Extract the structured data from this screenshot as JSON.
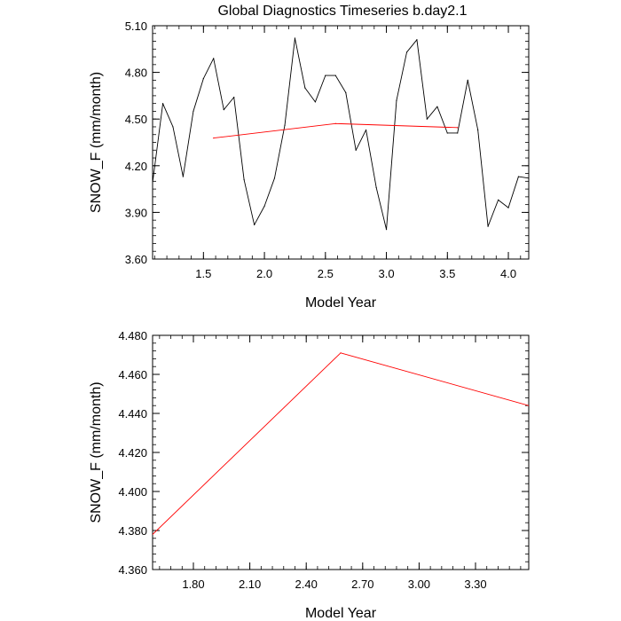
{
  "title": "Global Diagnostics Timeseries b.day2.1",
  "chart_data": [
    {
      "type": "line",
      "title": "Global Diagnostics Timeseries b.day2.1",
      "xlabel": "Model Year",
      "ylabel": "SNOW_F (mm/month)",
      "xlim": [
        1.083,
        4.167
      ],
      "ylim": [
        3.6,
        5.1
      ],
      "xticks": [
        "1.5",
        "2.0",
        "2.5",
        "3.0",
        "3.5",
        "4.0"
      ],
      "yticks": [
        "3.60",
        "3.90",
        "4.20",
        "4.50",
        "4.80",
        "5.10"
      ],
      "grid": false,
      "series": [
        {
          "color": "#000000",
          "x": [
            1.083,
            1.167,
            1.25,
            1.333,
            1.417,
            1.5,
            1.583,
            1.667,
            1.75,
            1.833,
            1.917,
            2.0,
            2.083,
            2.167,
            2.25,
            2.333,
            2.417,
            2.5,
            2.583,
            2.667,
            2.75,
            2.833,
            2.917,
            3.0,
            3.083,
            3.167,
            3.25,
            3.333,
            3.417,
            3.5,
            3.583,
            3.667,
            3.75,
            3.833,
            3.917,
            4.0,
            4.083,
            4.167
          ],
          "values": [
            4.09,
            4.6,
            4.45,
            4.13,
            4.55,
            4.76,
            4.89,
            4.56,
            4.64,
            4.11,
            3.82,
            3.94,
            4.12,
            4.46,
            5.02,
            4.7,
            4.61,
            4.78,
            4.78,
            4.67,
            4.3,
            4.43,
            4.06,
            3.79,
            4.62,
            4.93,
            5.01,
            4.5,
            4.58,
            4.41,
            4.41,
            4.75,
            4.43,
            3.81,
            3.98,
            3.93,
            4.13,
            4.12
          ]
        },
        {
          "color": "#ff0000",
          "x": [
            1.583,
            2.583,
            3.583
          ],
          "values": [
            4.378,
            4.471,
            4.445
          ]
        }
      ]
    },
    {
      "type": "line",
      "xlabel": "Model Year",
      "ylabel": "SNOW_F (mm/month)",
      "xlim": [
        1.583,
        3.583
      ],
      "ylim": [
        4.36,
        4.48
      ],
      "xticks": [
        "1.80",
        "2.10",
        "2.40",
        "2.70",
        "3.00",
        "3.30"
      ],
      "yticks": [
        "4.360",
        "4.380",
        "4.400",
        "4.420",
        "4.440",
        "4.460",
        "4.480"
      ],
      "grid": false,
      "series": [
        {
          "color": "#ff0000",
          "x": [
            1.583,
            2.583,
            3.583
          ],
          "values": [
            4.378,
            4.471,
            4.444
          ]
        }
      ]
    }
  ]
}
